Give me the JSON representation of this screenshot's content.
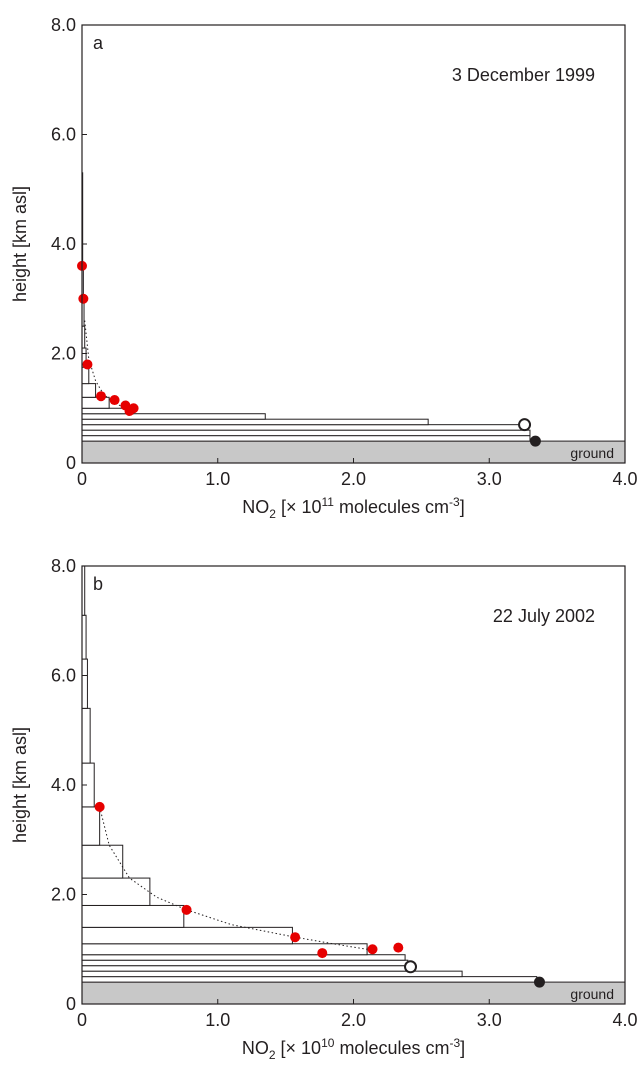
{
  "figure": {
    "ground_label": "ground",
    "colors": {
      "ground": "#c8c8c8",
      "measured": "#e60000",
      "surface_filled": "#231f20",
      "profile_bars": "#ffffff",
      "axes": "#231f20"
    }
  },
  "chart_data": [
    {
      "type": "bar",
      "orientation": "horizontal",
      "panel_label": "a",
      "date": "3 December 1999",
      "xlabel_parts": {
        "base": "NO",
        "sub": "2",
        "pre": " [× 10",
        "exp": "11",
        "post": " molecules cm",
        "exp2": "-3",
        "end": "]"
      },
      "ylabel": "height [km asl]",
      "xlim": [
        0,
        4.0
      ],
      "ylim": [
        0,
        8.0
      ],
      "xticks": [
        "0",
        "1.0",
        "2.0",
        "3.0",
        "4.0"
      ],
      "yticks": [
        "0",
        "2.0",
        "4.0",
        "6.0",
        "8.0"
      ],
      "ground_top_km": 0.4,
      "profile_layers": [
        {
          "y0": 0.4,
          "y1": 0.5,
          "value": 3.3
        },
        {
          "y0": 0.5,
          "y1": 0.6,
          "value": 3.3
        },
        {
          "y0": 0.6,
          "y1": 0.7,
          "value": 3.28
        },
        {
          "y0": 0.7,
          "y1": 0.8,
          "value": 2.55
        },
        {
          "y0": 0.8,
          "y1": 0.9,
          "value": 1.35
        },
        {
          "y0": 0.9,
          "y1": 1.0,
          "value": 0.38
        },
        {
          "y0": 1.0,
          "y1": 1.2,
          "value": 0.2
        },
        {
          "y0": 1.2,
          "y1": 1.45,
          "value": 0.1
        },
        {
          "y0": 1.45,
          "y1": 1.75,
          "value": 0.05
        },
        {
          "y0": 1.75,
          "y1": 2.1,
          "value": 0.03
        },
        {
          "y0": 2.1,
          "y1": 2.5,
          "value": 0.02
        },
        {
          "y0": 2.5,
          "y1": 3.0,
          "value": 0.015
        },
        {
          "y0": 3.0,
          "y1": 3.6,
          "value": 0.01
        },
        {
          "y0": 3.6,
          "y1": 5.3,
          "value": 0.005
        }
      ],
      "measured_points": [
        {
          "x": 0.0,
          "y": 3.6
        },
        {
          "x": 0.01,
          "y": 3.0
        },
        {
          "x": 0.04,
          "y": 1.8
        },
        {
          "x": 0.14,
          "y": 1.22
        },
        {
          "x": 0.24,
          "y": 1.15
        },
        {
          "x": 0.32,
          "y": 1.05
        },
        {
          "x": 0.35,
          "y": 0.95
        },
        {
          "x": 0.38,
          "y": 1.0
        }
      ],
      "fit_curve": [
        {
          "x": 0.02,
          "y": 2.6
        },
        {
          "x": 0.05,
          "y": 1.9
        },
        {
          "x": 0.1,
          "y": 1.5
        },
        {
          "x": 0.16,
          "y": 1.25
        },
        {
          "x": 0.24,
          "y": 1.1
        },
        {
          "x": 0.32,
          "y": 1.0
        },
        {
          "x": 0.36,
          "y": 0.95
        }
      ],
      "open_marker": {
        "x": 3.26,
        "y": 0.7
      },
      "filled_marker": {
        "x": 3.34,
        "y": 0.4
      }
    },
    {
      "type": "bar",
      "orientation": "horizontal",
      "panel_label": "b",
      "date": "22 July 2002",
      "xlabel_parts": {
        "base": "NO",
        "sub": "2",
        "pre": " [× 10",
        "exp": "10",
        "post": " molecules cm",
        "exp2": "-3",
        "end": "]"
      },
      "ylabel": "height [km asl]",
      "xlim": [
        0,
        4.0
      ],
      "ylim": [
        0,
        8.0
      ],
      "xticks": [
        "0",
        "1.0",
        "2.0",
        "3.0",
        "4.0"
      ],
      "yticks": [
        "0",
        "2.0",
        "4.0",
        "6.0",
        "8.0"
      ],
      "ground_top_km": 0.4,
      "profile_layers": [
        {
          "y0": 0.4,
          "y1": 0.5,
          "value": 3.35
        },
        {
          "y0": 0.5,
          "y1": 0.6,
          "value": 2.8
        },
        {
          "y0": 0.6,
          "y1": 0.7,
          "value": 2.42
        },
        {
          "y0": 0.7,
          "y1": 0.8,
          "value": 2.4
        },
        {
          "y0": 0.8,
          "y1": 0.9,
          "value": 2.38
        },
        {
          "y0": 0.9,
          "y1": 1.1,
          "value": 2.1
        },
        {
          "y0": 1.1,
          "y1": 1.4,
          "value": 1.55
        },
        {
          "y0": 1.4,
          "y1": 1.8,
          "value": 0.75
        },
        {
          "y0": 1.8,
          "y1": 2.3,
          "value": 0.5
        },
        {
          "y0": 2.3,
          "y1": 2.9,
          "value": 0.3
        },
        {
          "y0": 2.9,
          "y1": 3.6,
          "value": 0.13
        },
        {
          "y0": 3.6,
          "y1": 4.4,
          "value": 0.09
        },
        {
          "y0": 4.4,
          "y1": 5.4,
          "value": 0.06
        },
        {
          "y0": 5.4,
          "y1": 6.3,
          "value": 0.04
        },
        {
          "y0": 6.3,
          "y1": 7.1,
          "value": 0.03
        },
        {
          "y0": 7.1,
          "y1": 8.0,
          "value": 0.02
        }
      ],
      "measured_points": [
        {
          "x": 0.13,
          "y": 3.6
        },
        {
          "x": 0.77,
          "y": 1.72
        },
        {
          "x": 1.57,
          "y": 1.22
        },
        {
          "x": 1.77,
          "y": 0.93
        },
        {
          "x": 2.14,
          "y": 1.0
        },
        {
          "x": 2.33,
          "y": 1.03
        }
      ],
      "fit_curve": [
        {
          "x": 0.13,
          "y": 3.6
        },
        {
          "x": 0.2,
          "y": 2.9
        },
        {
          "x": 0.35,
          "y": 2.3
        },
        {
          "x": 0.55,
          "y": 1.95
        },
        {
          "x": 0.77,
          "y": 1.72
        },
        {
          "x": 1.1,
          "y": 1.45
        },
        {
          "x": 1.57,
          "y": 1.22
        },
        {
          "x": 1.9,
          "y": 1.08
        },
        {
          "x": 2.1,
          "y": 1.0
        }
      ],
      "open_marker": {
        "x": 2.42,
        "y": 0.68
      },
      "filled_marker": {
        "x": 3.37,
        "y": 0.4
      }
    }
  ]
}
